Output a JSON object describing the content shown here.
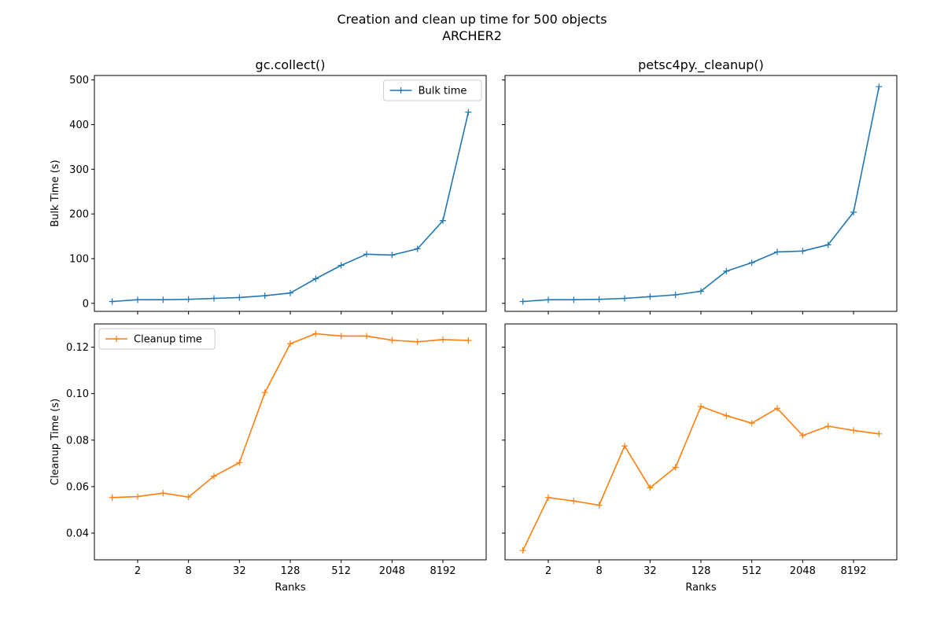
{
  "figure": {
    "suptitle_line1": "Creation and clean up time for 500 objects",
    "suptitle_line2": "ARCHER2"
  },
  "colors": {
    "bulk": "#1f77b4",
    "cleanup": "#ff7f0e"
  },
  "chart_data": [
    {
      "type": "line",
      "title": "gc.collect()",
      "xlabel": "",
      "ylabel": "Bulk Time (s)",
      "xscale": "log2",
      "xticks": [
        2,
        8,
        32,
        128,
        512,
        2048,
        8192
      ],
      "xtick_labels": [
        "2",
        "8",
        "32",
        "128",
        "512",
        "2048",
        "8192"
      ],
      "xtick_labels_visible": false,
      "ylim": [
        -18,
        510
      ],
      "yticks": [
        0,
        100,
        200,
        300,
        400,
        500
      ],
      "ytick_labels": [
        "0",
        "100",
        "200",
        "300",
        "400",
        "500"
      ],
      "ytick_labels_visible": true,
      "legend": "upper right",
      "series": [
        {
          "name": "Bulk time",
          "color": "#1f77b4",
          "x": [
            1,
            2,
            4,
            8,
            16,
            32,
            64,
            128,
            256,
            512,
            1024,
            2048,
            4096,
            8192,
            16384
          ],
          "y": [
            4,
            8,
            8,
            9,
            11,
            13,
            17,
            23,
            55,
            85,
            110,
            108,
            122,
            185,
            428
          ]
        }
      ]
    },
    {
      "type": "line",
      "title": "petsc4py._cleanup()",
      "xlabel": "",
      "ylabel": "",
      "xscale": "log2",
      "xticks": [
        2,
        8,
        32,
        128,
        512,
        2048,
        8192
      ],
      "xtick_labels": [
        "2",
        "8",
        "32",
        "128",
        "512",
        "2048",
        "8192"
      ],
      "xtick_labels_visible": false,
      "ylim": [
        -18,
        510
      ],
      "yticks": [
        0,
        100,
        200,
        300,
        400,
        500
      ],
      "ytick_labels": [
        "0",
        "100",
        "200",
        "300",
        "400",
        "500"
      ],
      "ytick_labels_visible": false,
      "legend": "",
      "series": [
        {
          "name": "",
          "color": "#1f77b4",
          "x": [
            1,
            2,
            4,
            8,
            16,
            32,
            64,
            128,
            256,
            512,
            1024,
            2048,
            4096,
            8192,
            16384
          ],
          "y": [
            4,
            8,
            8,
            9,
            11,
            15,
            19,
            27,
            72,
            91,
            115,
            117,
            131,
            204,
            485
          ]
        }
      ]
    },
    {
      "type": "line",
      "title": "",
      "xlabel": "Ranks",
      "ylabel": "Cleanup Time (s)",
      "xscale": "log2",
      "xticks": [
        2,
        8,
        32,
        128,
        512,
        2048,
        8192
      ],
      "xtick_labels": [
        "2",
        "8",
        "32",
        "128",
        "512",
        "2048",
        "8192"
      ],
      "xtick_labels_visible": true,
      "ylim": [
        0.0285,
        0.13
      ],
      "yticks": [
        0.04,
        0.06,
        0.08,
        0.1,
        0.12
      ],
      "ytick_labels": [
        "0.04",
        "0.06",
        "0.08",
        "0.10",
        "0.12"
      ],
      "ytick_labels_visible": true,
      "legend": "upper left",
      "series": [
        {
          "name": "Cleanup time",
          "color": "#ff7f0e",
          "x": [
            1,
            2,
            4,
            8,
            16,
            32,
            64,
            128,
            256,
            512,
            1024,
            2048,
            4096,
            8192,
            16384
          ],
          "y": [
            0.0553,
            0.0557,
            0.0572,
            0.0555,
            0.0645,
            0.0703,
            0.1005,
            0.1215,
            0.1258,
            0.1248,
            0.1248,
            0.123,
            0.1223,
            0.1233,
            0.1229
          ]
        }
      ]
    },
    {
      "type": "line",
      "title": "",
      "xlabel": "Ranks",
      "ylabel": "",
      "xscale": "log2",
      "xticks": [
        2,
        8,
        32,
        128,
        512,
        2048,
        8192
      ],
      "xtick_labels": [
        "2",
        "8",
        "32",
        "128",
        "512",
        "2048",
        "8192"
      ],
      "xtick_labels_visible": true,
      "ylim": [
        0.0285,
        0.13
      ],
      "yticks": [
        0.04,
        0.06,
        0.08,
        0.1,
        0.12
      ],
      "ytick_labels": [
        "0.04",
        "0.06",
        "0.08",
        "0.10",
        "0.12"
      ],
      "ytick_labels_visible": false,
      "legend": "",
      "series": [
        {
          "name": "",
          "color": "#ff7f0e",
          "x": [
            1,
            2,
            4,
            8,
            16,
            32,
            64,
            128,
            256,
            512,
            1024,
            2048,
            4096,
            8192,
            16384
          ],
          "y": [
            0.0325,
            0.0553,
            0.0538,
            0.052,
            0.0775,
            0.0595,
            0.0683,
            0.0945,
            0.0905,
            0.0873,
            0.0937,
            0.082,
            0.086,
            0.0842,
            0.0827
          ]
        }
      ]
    }
  ]
}
